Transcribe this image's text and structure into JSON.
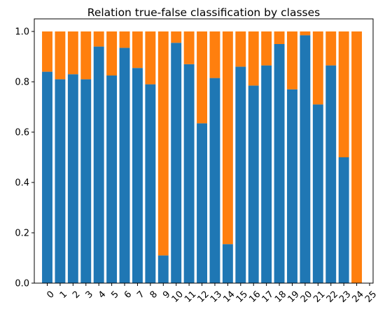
{
  "chart_data": {
    "type": "bar",
    "stacked": true,
    "title": "Relation true-false classification by classes",
    "xlabel": "",
    "ylabel": "",
    "ylim": [
      0,
      1.05
    ],
    "yticks": [
      0.0,
      0.2,
      0.4,
      0.6,
      0.8,
      1.0
    ],
    "ytick_labels": [
      "0.0",
      "0.2",
      "0.4",
      "0.6",
      "0.8",
      "1.0"
    ],
    "categories": [
      "0",
      "1",
      "2",
      "3",
      "4",
      "5",
      "6",
      "7",
      "8",
      "9",
      "10",
      "11",
      "12",
      "13",
      "14",
      "15",
      "16",
      "17",
      "18",
      "19",
      "20",
      "21",
      "22",
      "23",
      "24",
      "25"
    ],
    "series": [
      {
        "color": "#1f77b4",
        "values": [
          0.84,
          0.81,
          0.83,
          0.81,
          0.94,
          0.825,
          0.935,
          0.855,
          0.79,
          0.11,
          0.955,
          0.87,
          0.635,
          0.815,
          0.155,
          0.86,
          0.785,
          0.865,
          0.95,
          0.77,
          0.985,
          0.71,
          0.865,
          0.5,
          0.0,
          null
        ]
      },
      {
        "color": "#ff7f0e",
        "values": [
          0.16,
          0.19,
          0.17,
          0.19,
          0.06,
          0.175,
          0.065,
          0.145,
          0.21,
          0.89,
          0.045,
          0.13,
          0.365,
          0.185,
          0.845,
          0.14,
          0.215,
          0.135,
          0.05,
          0.23,
          0.015,
          0.29,
          0.135,
          0.5,
          1.0,
          null
        ]
      }
    ],
    "grid": false,
    "legend": "none"
  }
}
